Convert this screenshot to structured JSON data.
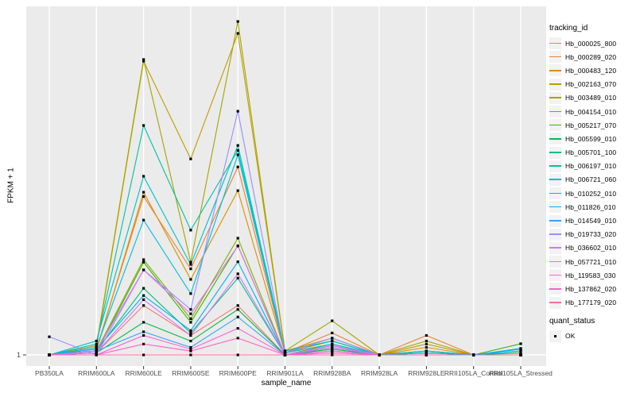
{
  "figure": {
    "background": "#FFFFFF",
    "panel_background": "#EBEBEB",
    "gridline_color": "#FFFFFF",
    "tick_mark_color": "#333333",
    "tick_text_color": "#4D4D4D",
    "point_color": "#000000"
  },
  "axes": {
    "x_title": "sample_name",
    "y_title": "FPKM + 1",
    "y_tick_labels": [
      "1"
    ]
  },
  "legend": {
    "tracking_title": "tracking_id",
    "quant_title": "quant_status",
    "quant_items": [
      {
        "label": "OK",
        "marker": "black-square"
      }
    ]
  },
  "chart_data": {
    "type": "line",
    "title": "",
    "xlabel": "sample_name",
    "ylabel": "FPKM + 1",
    "y_scale": "log10",
    "y_ticks": [
      1
    ],
    "grid": "major-white-on-grey",
    "legend_position": "right",
    "marker": "small black square on every point (quant_status = OK)",
    "categories": [
      "PB350LA",
      "RRIM600LA",
      "RRIM600LE",
      "RRIM600SE",
      "RRIM600PE",
      "RRIM901LA",
      "RRIM928BA",
      "RRIM928LA",
      "RRIM928LE",
      "RRII105LA_Control",
      "RRII105LA_Stressed"
    ],
    "series": [
      {
        "name": "Hb_000025_800",
        "color": "#F8766D",
        "values": [
          1,
          1.05,
          3.3,
          1.6,
          3.3,
          1,
          1.15,
          1,
          1.05,
          1,
          1
        ]
      },
      {
        "name": "Hb_000289_020",
        "color": "#EA8331",
        "values": [
          1,
          1.15,
          46,
          8,
          94,
          1.05,
          1.7,
          1,
          1.6,
          1,
          1
        ]
      },
      {
        "name": "Hb_000483_120",
        "color": "#D89000",
        "values": [
          1,
          1.1,
          51,
          6.2,
          53,
          1.05,
          1.4,
          1,
          1.2,
          1,
          1
        ]
      },
      {
        "name": "Hb_002163_070",
        "color": "#C09B00",
        "values": [
          1,
          1.2,
          1210,
          114,
          2370,
          1.1,
          1.5,
          1,
          1.3,
          1,
          1
        ]
      },
      {
        "name": "Hb_003489_010",
        "color": "#A3A500",
        "values": [
          1,
          1.25,
          1260,
          9.4,
          3160,
          1.1,
          2.28,
          1,
          1.4,
          1,
          1
        ]
      },
      {
        "name": "Hb_004154_010",
        "color": "#7CAE00",
        "values": [
          1,
          1.1,
          10,
          2.4,
          16.8,
          1,
          1.3,
          1,
          1.1,
          1,
          1
        ]
      },
      {
        "name": "Hb_005217_070",
        "color": "#39B600",
        "values": [
          1,
          1.05,
          9.4,
          2.2,
          14,
          1,
          1.2,
          1,
          1.05,
          1,
          1.31
        ]
      },
      {
        "name": "Hb_005599_010",
        "color": "#00BB4E",
        "values": [
          1,
          1.05,
          2.2,
          1.4,
          3,
          1,
          1.15,
          1,
          1,
          1,
          1.05
        ]
      },
      {
        "name": "Hb_005701_100",
        "color": "#00BF7D",
        "values": [
          1,
          1.1,
          5,
          1.7,
          6.4,
          1,
          1.2,
          1,
          1.05,
          1,
          1
        ]
      },
      {
        "name": "Hb_006197_010",
        "color": "#00C1A3",
        "values": [
          1,
          1.3,
          256,
          20.4,
          140,
          1.1,
          1.4,
          1,
          1.1,
          1,
          1.1
        ]
      },
      {
        "name": "Hb_006721_060",
        "color": "#00BFC4",
        "values": [
          1,
          1.4,
          75,
          8.9,
          158,
          1.1,
          1.4,
          1,
          1.1,
          1,
          1.15
        ]
      },
      {
        "name": "Hb_010252_010",
        "color": "#00BAE0",
        "values": [
          1,
          1.2,
          26,
          4.4,
          126,
          1.05,
          1.3,
          1,
          1.05,
          1,
          1.1
        ]
      },
      {
        "name": "Hb_011826_010",
        "color": "#00B0F6",
        "values": [
          1,
          1.15,
          4.2,
          1.8,
          9.5,
          1,
          1.25,
          1,
          1,
          1,
          1.17
        ]
      },
      {
        "name": "Hb_014549_010",
        "color": "#35A2FF",
        "values": [
          1,
          1.1,
          1.75,
          1.2,
          2.5,
          1,
          1.1,
          1,
          1,
          1,
          1
        ]
      },
      {
        "name": "Hb_019733_020",
        "color": "#9590FF",
        "values": [
          1.55,
          1,
          7.8,
          3,
          361,
          1.05,
          1.5,
          1,
          1,
          1,
          1
        ]
      },
      {
        "name": "Hb_036602_010",
        "color": "#C77CFF",
        "values": [
          1,
          1.05,
          3.8,
          1.6,
          7.1,
          1,
          1.2,
          1,
          1,
          1,
          1
        ]
      },
      {
        "name": "Hb_057721_010",
        "color": "#E76BF3",
        "values": [
          1,
          1.1,
          7.8,
          2.7,
          13.9,
          1,
          1.25,
          1,
          1,
          1,
          1
        ]
      },
      {
        "name": "Hb_119583_030",
        "color": "#FA62DB",
        "values": [
          1,
          1,
          1.6,
          1.15,
          1.9,
          1,
          1.1,
          1,
          1,
          1,
          1
        ]
      },
      {
        "name": "Hb_137862_020",
        "color": "#FF61C3",
        "values": [
          1,
          1,
          1.3,
          1.1,
          1.5,
          1,
          1.05,
          1,
          1,
          1,
          1
        ]
      },
      {
        "name": "Hb_177179_020",
        "color": "#FF67A4",
        "values": [
          1,
          1,
          1,
          1,
          1,
          1,
          1,
          1,
          1,
          1,
          1
        ]
      }
    ]
  }
}
